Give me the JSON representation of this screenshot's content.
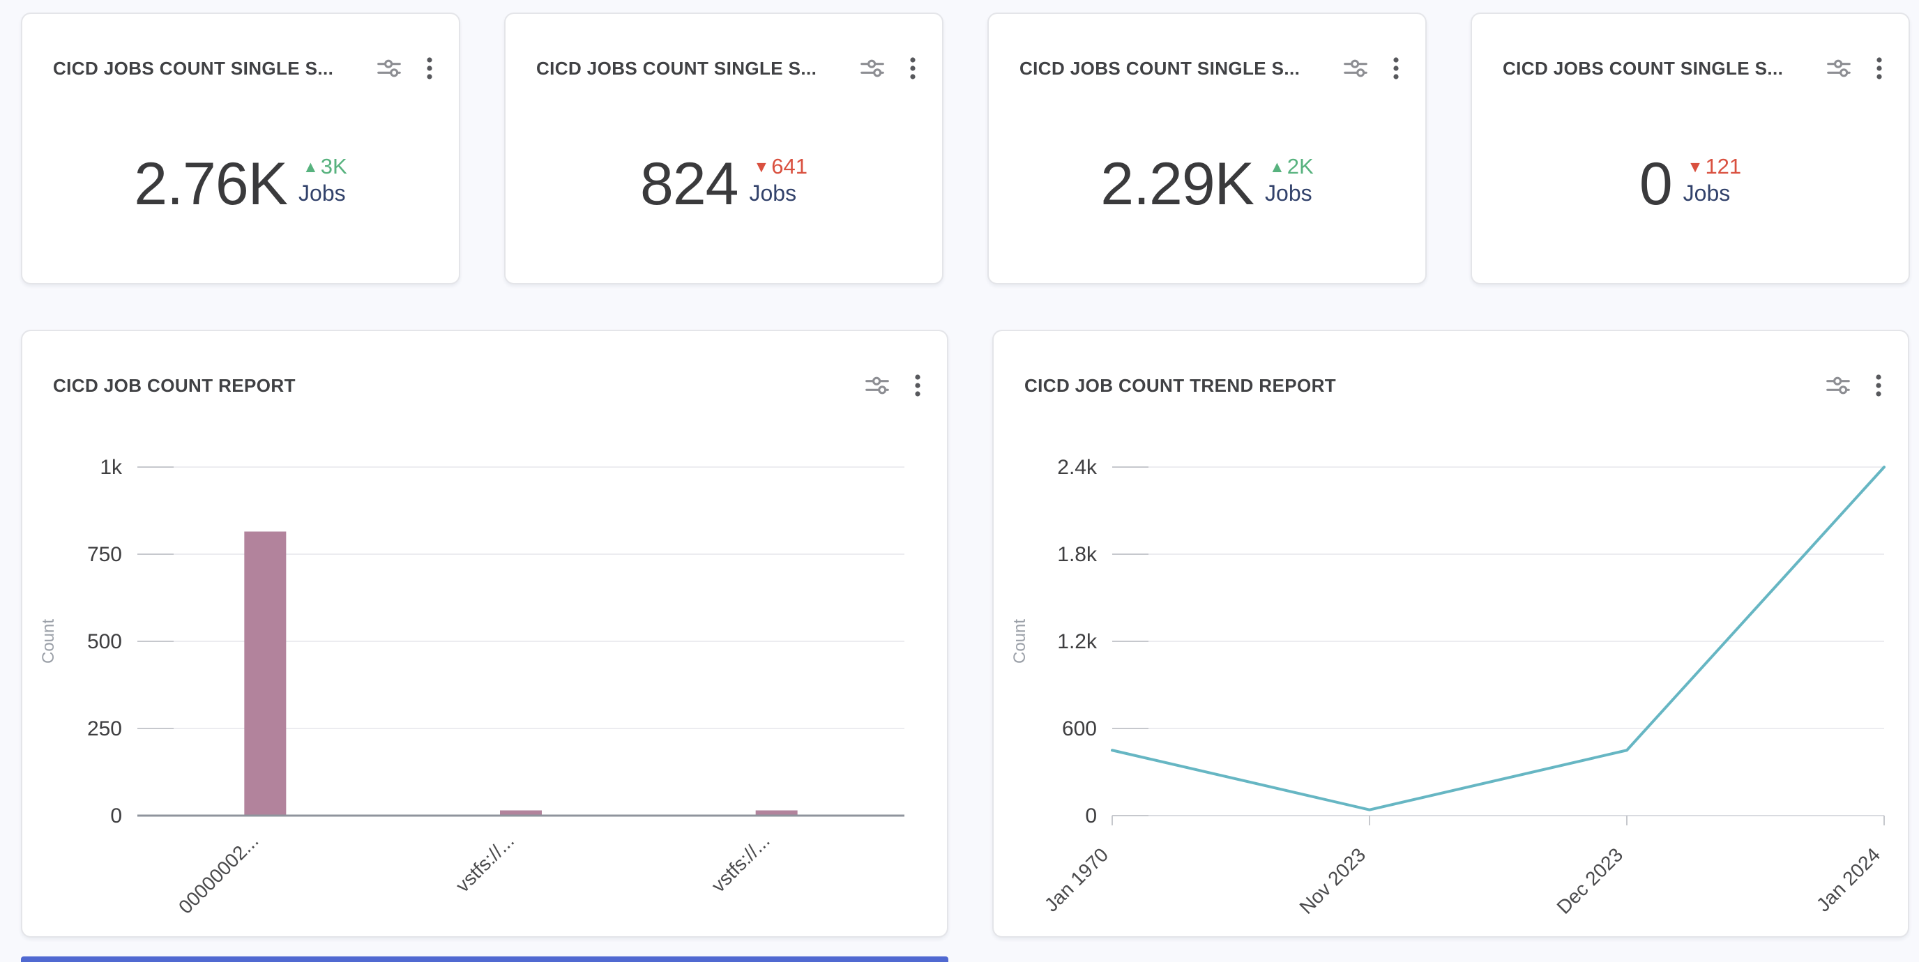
{
  "colors": {
    "up": "#57b27e",
    "down": "#d9503f",
    "bar": "#b2839c",
    "line": "#66b6c3",
    "unit": "#32426b",
    "value": "#3a3a3c",
    "edge": "#5069d1"
  },
  "stat_cards": [
    {
      "title": "CICD JOBS COUNT SINGLE S...",
      "value": "2.76K",
      "arrow": "▲",
      "delta": "3K",
      "direction": "up",
      "unit": "Jobs"
    },
    {
      "title": "CICD JOBS COUNT SINGLE S...",
      "value": "824",
      "arrow": "▼",
      "delta": "641",
      "direction": "down",
      "unit": "Jobs"
    },
    {
      "title": "CICD JOBS COUNT SINGLE S...",
      "value": "2.29K",
      "arrow": "▲",
      "delta": "2K",
      "direction": "up",
      "unit": "Jobs"
    },
    {
      "title": "CICD JOBS COUNT SINGLE S...",
      "value": "0",
      "arrow": "▼",
      "delta": "121",
      "direction": "down",
      "unit": "Jobs"
    }
  ],
  "chart_data": [
    {
      "type": "bar",
      "title": "CICD JOB COUNT REPORT",
      "categories": [
        "00000002...",
        "vstfs://...",
        "vstfs://..."
      ],
      "values": [
        815,
        15,
        15
      ],
      "xlabel": "",
      "ylabel": "Count",
      "ylim": [
        0,
        1000
      ],
      "ytick_values": [
        0,
        250,
        500,
        750,
        1000
      ],
      "ytick_labels": [
        "0",
        "250",
        "500",
        "750",
        "1k"
      ],
      "grid": true,
      "legend": "none",
      "bar_color": "#b2839c"
    },
    {
      "type": "line",
      "title": "CICD JOB COUNT TREND REPORT",
      "x": [
        "Jan 1970",
        "Nov 2023",
        "Dec 2023",
        "Jan 2024"
      ],
      "values": [
        450,
        40,
        450,
        2400
      ],
      "xlabel": "",
      "ylabel": "Count",
      "ylim": [
        0,
        2400
      ],
      "ytick_values": [
        0,
        600,
        1200,
        1800,
        2400
      ],
      "ytick_labels": [
        "0",
        "600",
        "1.2k",
        "1.8k",
        "2.4k"
      ],
      "grid": true,
      "legend": "none",
      "line_color": "#66b6c3"
    }
  ]
}
